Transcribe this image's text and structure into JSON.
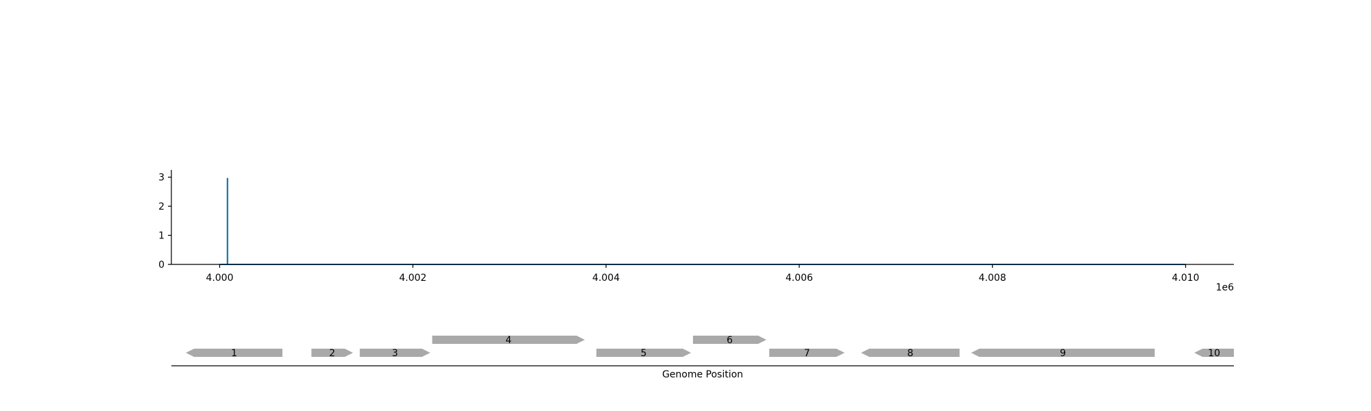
{
  "chart_data": [
    {
      "type": "line",
      "title": "",
      "xlabel": "",
      "ylabel": "",
      "x_offset_label": "1e6",
      "xlim": [
        3999500,
        4010500
      ],
      "ylim": [
        0,
        3.25
      ],
      "x_ticks": [
        4000000,
        4002000,
        4004000,
        4006000,
        4008000,
        4010000
      ],
      "x_tick_labels": [
        "4.000",
        "4.002",
        "4.004",
        "4.006",
        "4.008",
        "4.010"
      ],
      "y_ticks": [
        0,
        1,
        2,
        3
      ],
      "y_tick_labels": [
        "0",
        "1",
        "2",
        "3"
      ],
      "grid": false,
      "series": [
        {
          "color": "#1f77b4",
          "x": [
            4000000,
            4000080,
            4000080,
            4000082,
            4000082,
            4010000
          ],
          "y": [
            0,
            0,
            2.95,
            2.95,
            0,
            0
          ]
        }
      ]
    },
    {
      "type": "gene-track",
      "xlabel": "Genome Position",
      "xlim": [
        3999500,
        4010500
      ],
      "feature_color": "#a9a9a9",
      "features": [
        {
          "label": "1",
          "start": 3999650,
          "end": 4000650,
          "strand": -1,
          "level": 0
        },
        {
          "label": "2",
          "start": 4000950,
          "end": 4001380,
          "strand": 1,
          "level": 0
        },
        {
          "label": "3",
          "start": 4001450,
          "end": 4002180,
          "strand": 1,
          "level": 0
        },
        {
          "label": "4",
          "start": 4002200,
          "end": 4003780,
          "strand": 1,
          "level": 1
        },
        {
          "label": "5",
          "start": 4003900,
          "end": 4004880,
          "strand": 1,
          "level": 0
        },
        {
          "label": "6",
          "start": 4004900,
          "end": 4005660,
          "strand": 1,
          "level": 1
        },
        {
          "label": "7",
          "start": 4005690,
          "end": 4006470,
          "strand": 1,
          "level": 0
        },
        {
          "label": "8",
          "start": 4006640,
          "end": 4007660,
          "strand": -1,
          "level": 0
        },
        {
          "label": "9",
          "start": 4007780,
          "end": 4009680,
          "strand": -1,
          "level": 0
        },
        {
          "label": "10",
          "start": 4010090,
          "end": 4010500,
          "strand": -1,
          "level": 0
        }
      ]
    }
  ]
}
